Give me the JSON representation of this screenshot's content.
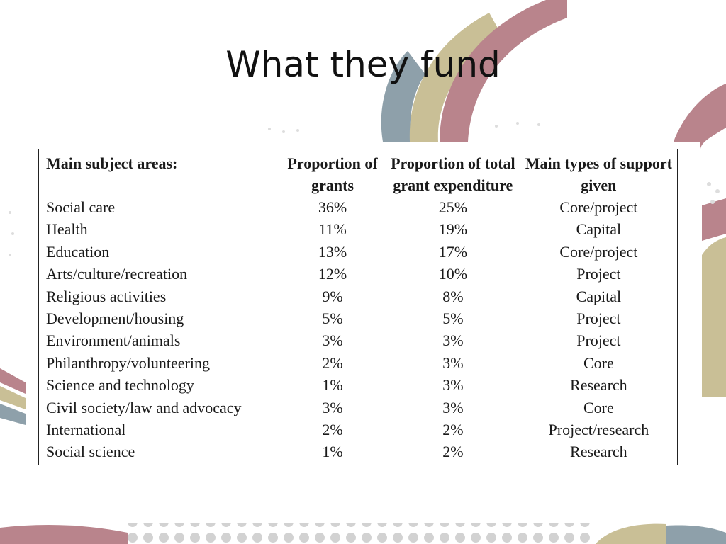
{
  "slide": {
    "title": "What they fund"
  },
  "table": {
    "headers": [
      "Main subject areas:",
      "Proportion of grants",
      "Proportion of total grant expenditure",
      "Main types of support given"
    ],
    "rows": [
      [
        "Social care",
        "36%",
        "25%",
        "Core/project"
      ],
      [
        "Health",
        "11%",
        "19%",
        "Capital"
      ],
      [
        "Education",
        "13%",
        "17%",
        "Core/project"
      ],
      [
        "Arts/culture/recreation",
        "12%",
        "10%",
        "Project"
      ],
      [
        "Religious activities",
        "9%",
        "8%",
        "Capital"
      ],
      [
        "Development/housing",
        "5%",
        "5%",
        "Project"
      ],
      [
        "Environment/animals",
        "3%",
        "3%",
        "Project"
      ],
      [
        "Philanthropy/volunteering",
        "2%",
        "3%",
        "Core"
      ],
      [
        "Science and technology",
        "1%",
        "3%",
        "Research"
      ],
      [
        "Civil society/law and advocacy",
        "3%",
        "3%",
        "Core"
      ],
      [
        "International",
        "2%",
        "2%",
        "Project/research"
      ],
      [
        "Social science",
        "1%",
        "2%",
        "Research"
      ]
    ]
  },
  "colors": {
    "arc_pink": "#b9848c",
    "arc_tan": "#c9bf96",
    "arc_blue": "#8ea0aa",
    "dots": "#d2d2d2"
  }
}
